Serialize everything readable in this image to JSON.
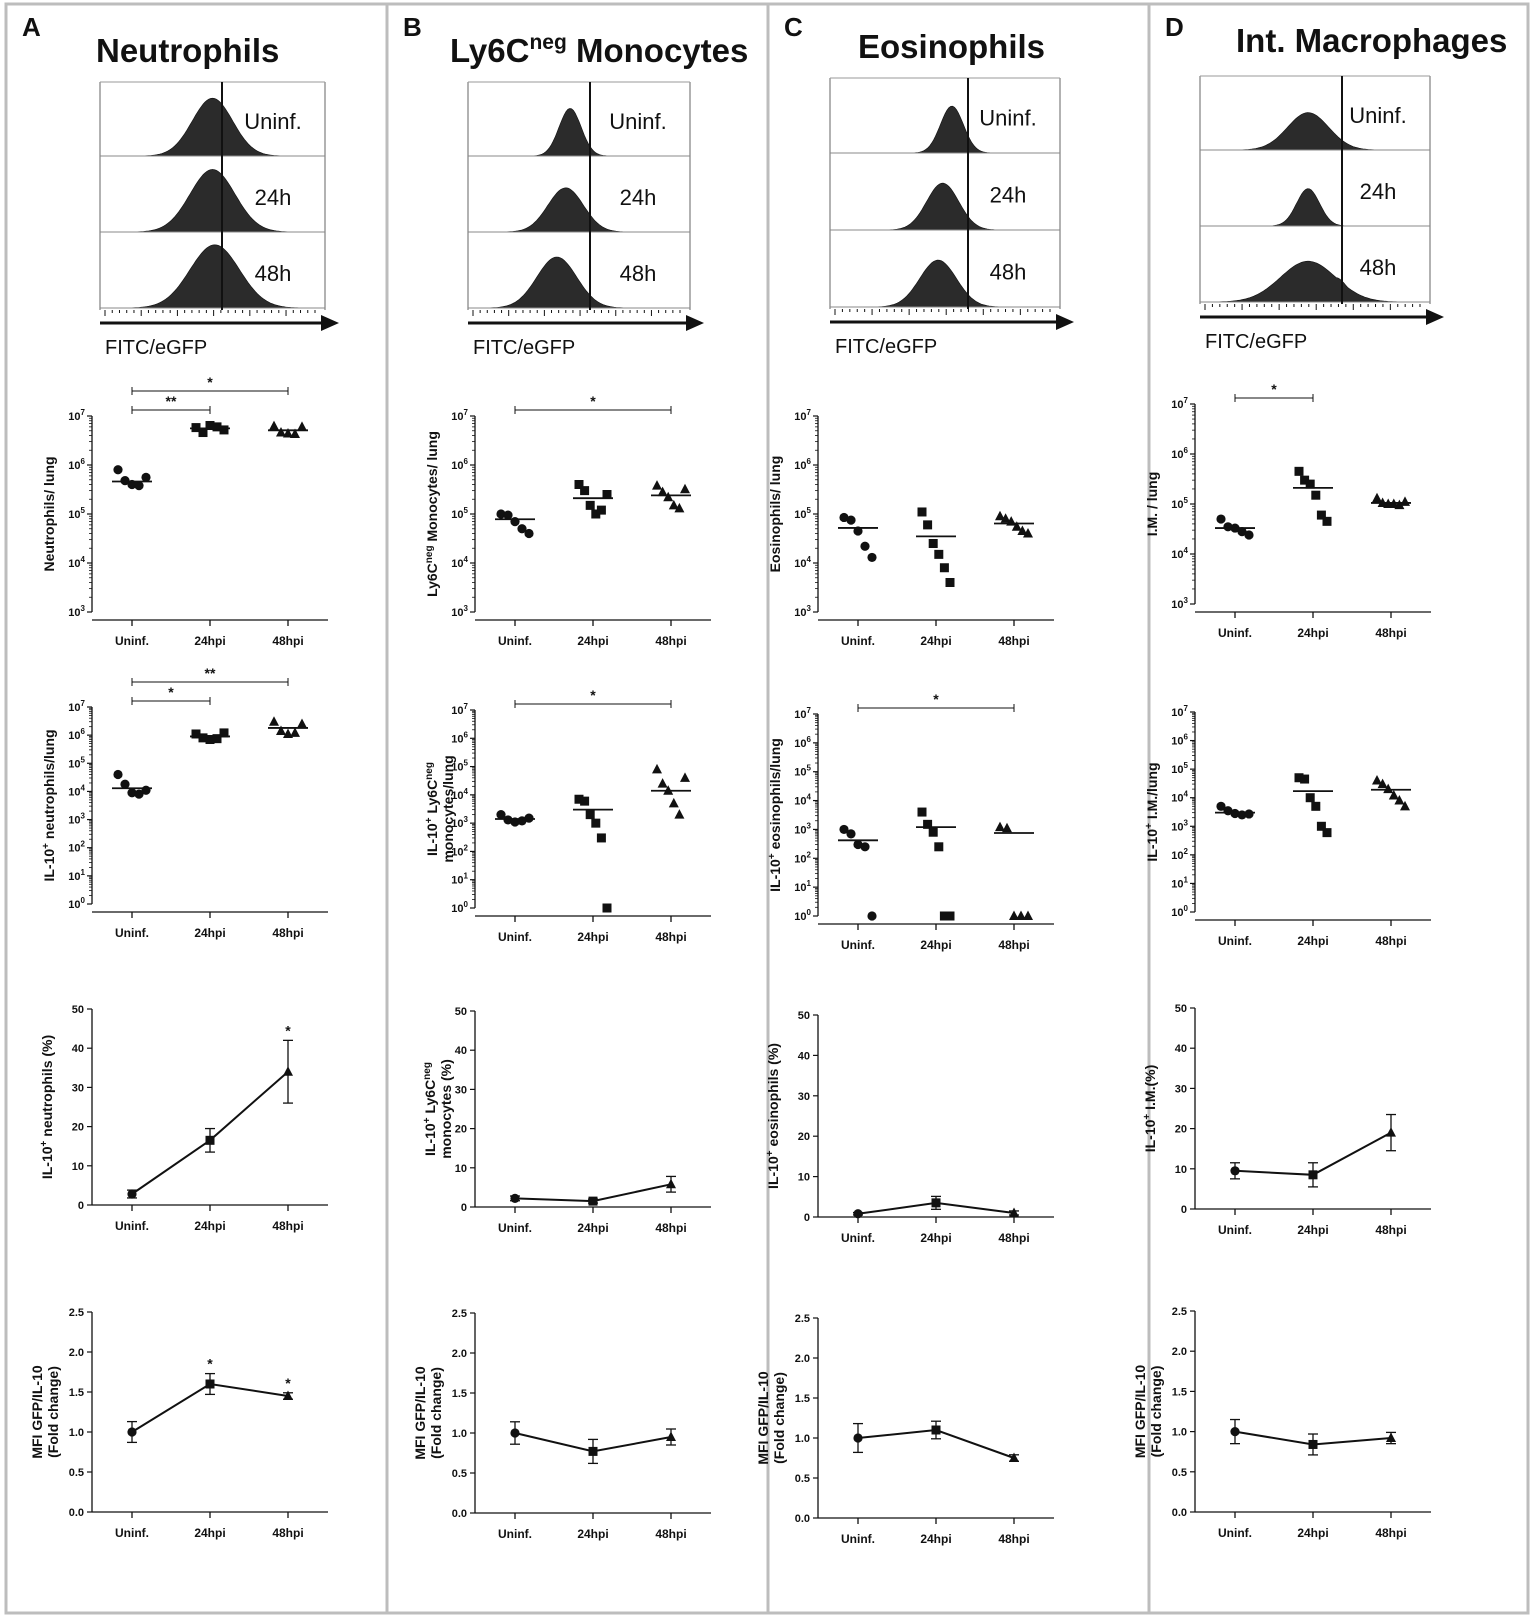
{
  "chart_data": {
    "type": "multi-panel",
    "x_categories": [
      "Uninf.",
      "24hpi",
      "48hpi"
    ],
    "hist_xlabel": "FITC/eGFP",
    "hist_labels": [
      "Uninf.",
      "24h",
      "48h"
    ],
    "panels": [
      {
        "letter": "A",
        "title": "Neutrophils",
        "title_sup": "",
        "title_rest": "",
        "counts": {
          "ylabel": "Neutrophils/ lung",
          "ylabel_sup": "",
          "ylabel_rest": "",
          "ylabel2": "",
          "ylim_exp": [
            3,
            7
          ],
          "groups": [
            {
              "points": [
                800000,
                480000,
                400000,
                380000,
                560000
              ],
              "mean": 460000
            },
            {
              "points": [
                5800000,
                4600000,
                6400000,
                6000000,
                5200000
              ],
              "mean": 5600000
            },
            {
              "points": [
                6200000,
                4600000,
                4400000,
                4300000,
                6000000
              ],
              "mean": 5100000
            }
          ],
          "sig": [
            {
              "from": 0,
              "to": 1,
              "label": "**"
            },
            {
              "from": 0,
              "to": 2,
              "label": "*"
            }
          ]
        },
        "il10": {
          "ylabel": "IL-10",
          "ylabel_sup": "+",
          "ylabel_rest": " neutrophils/lung",
          "ylabel2": "",
          "ylim_exp": [
            0,
            7
          ],
          "groups": [
            {
              "points": [
                40000,
                18000,
                9000,
                8000,
                11000
              ],
              "mean": 13000
            },
            {
              "points": [
                1100000,
                800000,
                700000,
                750000,
                1200000
              ],
              "mean": 900000
            },
            {
              "points": [
                3000000,
                1400000,
                1100000,
                1200000,
                2500000
              ],
              "mean": 1800000
            }
          ],
          "sig": [
            {
              "from": 0,
              "to": 1,
              "label": "*"
            },
            {
              "from": 0,
              "to": 2,
              "label": "**"
            }
          ]
        },
        "pct": {
          "ylabel": "IL-10",
          "ylabel_sup": "+",
          "ylabel_rest": " neutrophils (%)",
          "ylabel2": "",
          "ylim": [
            0,
            50
          ],
          "yticks": [
            0,
            10,
            20,
            30,
            40,
            50
          ],
          "values": [
            2.8,
            16.5,
            34
          ],
          "errors": [
            1.0,
            3.0,
            8.0
          ],
          "stars": [
            "",
            "",
            "*"
          ]
        },
        "mfi": {
          "ylabel": "MFI GFP/IL-10",
          "ylabel2": "(Fold change)",
          "ylim": [
            0,
            2.5
          ],
          "yticks": [
            0.0,
            0.5,
            1.0,
            1.5,
            2.0,
            2.5
          ],
          "values": [
            1.0,
            1.6,
            1.45
          ],
          "errors": [
            0.13,
            0.13,
            0.04
          ],
          "stars": [
            "",
            "*",
            "*"
          ]
        }
      },
      {
        "letter": "B",
        "title": "Ly6C",
        "title_sup": "neg",
        "title_rest": " Monocytes",
        "counts": {
          "ylabel": "Ly6C",
          "ylabel_sup": "neg",
          "ylabel_rest": " Monocytes/ lung",
          "ylabel2": "",
          "ylim_exp": [
            3,
            7
          ],
          "groups": [
            {
              "points": [
                100000,
                95000,
                70000,
                50000,
                40000
              ],
              "mean": 78000
            },
            {
              "points": [
                400000,
                300000,
                150000,
                100000,
                120000,
                250000
              ],
              "mean": 210000
            },
            {
              "points": [
                380000,
                280000,
                220000,
                150000,
                130000,
                320000
              ],
              "mean": 240000
            }
          ],
          "sig": [
            {
              "from": 0,
              "to": 2,
              "label": "*"
            }
          ]
        },
        "il10": {
          "ylabel": "IL-10",
          "ylabel_sup": "+",
          "ylabel_rest": " Ly6C",
          "ylabel_sup2": "neg",
          "ylabel2": "monocytes/lung",
          "ylim_exp": [
            0,
            7
          ],
          "groups": [
            {
              "points": [
                2000,
                1300,
                1100,
                1200,
                1500
              ],
              "mean": 1400
            },
            {
              "points": [
                7000,
                6000,
                2000,
                1000,
                300,
                1
              ],
              "mean": 3000
            },
            {
              "points": [
                80000,
                25000,
                14000,
                5000,
                2000,
                40000
              ],
              "mean": 14000
            }
          ],
          "sig": [
            {
              "from": 0,
              "to": 2,
              "label": "*"
            }
          ]
        },
        "pct": {
          "ylabel": "IL-10",
          "ylabel_sup": "+",
          "ylabel_rest": " Ly6C",
          "ylabel_sup2": "neg",
          "ylabel2": "monocytes (%)",
          "ylim": [
            0,
            50
          ],
          "yticks": [
            0,
            10,
            20,
            30,
            40,
            50
          ],
          "values": [
            2.2,
            1.5,
            5.8
          ],
          "errors": [
            0.6,
            0.5,
            2.0
          ],
          "stars": [
            "",
            "",
            ""
          ]
        },
        "mfi": {
          "ylabel": "MFI GFP/IL-10",
          "ylabel2": "(Fold change)",
          "ylim": [
            0,
            2.5
          ],
          "yticks": [
            0.0,
            0.5,
            1.0,
            1.5,
            2.0,
            2.5
          ],
          "values": [
            1.0,
            0.77,
            0.95
          ],
          "errors": [
            0.14,
            0.15,
            0.1
          ],
          "stars": [
            "",
            "",
            ""
          ]
        }
      },
      {
        "letter": "C",
        "title": "Eosinophils",
        "title_sup": "",
        "title_rest": "",
        "counts": {
          "ylabel": "Eosinophils/ lung",
          "ylabel_sup": "",
          "ylabel_rest": "",
          "ylabel2": "",
          "ylim_exp": [
            3,
            7
          ],
          "groups": [
            {
              "points": [
                85000,
                75000,
                45000,
                22000,
                13000
              ],
              "mean": 52000
            },
            {
              "points": [
                110000,
                60000,
                25000,
                15000,
                8000,
                4000
              ],
              "mean": 35000
            },
            {
              "points": [
                90000,
                80000,
                70000,
                55000,
                45000,
                40000
              ],
              "mean": 64000
            }
          ],
          "sig": []
        },
        "il10": {
          "ylabel": "IL-10",
          "ylabel_sup": "+",
          "ylabel_rest": " eosinophils/lung",
          "ylabel2": "",
          "ylim_exp": [
            0,
            7
          ],
          "groups": [
            {
              "points": [
                1000,
                700,
                300,
                250,
                1
              ],
              "mean": 420
            },
            {
              "points": [
                4000,
                1500,
                800,
                250,
                1,
                1
              ],
              "mean": 1200
            },
            {
              "points": [
                1200,
                1100,
                1,
                1,
                1
              ],
              "mean": 750
            }
          ],
          "sig": [
            {
              "from": 0,
              "to": 2,
              "label": "*"
            }
          ]
        },
        "pct": {
          "ylabel": "IL-10",
          "ylabel_sup": "+",
          "ylabel_rest": " eosinophils (%)",
          "ylabel2": "",
          "ylim": [
            0,
            50
          ],
          "yticks": [
            0,
            10,
            20,
            30,
            40,
            50
          ],
          "values": [
            0.8,
            3.5,
            1.0
          ],
          "errors": [
            0.3,
            1.6,
            0.5
          ],
          "stars": [
            "",
            "",
            ""
          ]
        },
        "mfi": {
          "ylabel": "MFI GFP/IL-10",
          "ylabel2": "(Fold change)",
          "ylim": [
            0,
            2.5
          ],
          "yticks": [
            0.0,
            0.5,
            1.0,
            1.5,
            2.0,
            2.5
          ],
          "values": [
            1.0,
            1.1,
            0.75
          ],
          "errors": [
            0.18,
            0.11,
            0.04
          ],
          "stars": [
            "",
            "",
            ""
          ]
        }
      },
      {
        "letter": "D",
        "title": "Int. Macrophages",
        "title_sup": "",
        "title_rest": "",
        "counts": {
          "ylabel": "I.M. / lung",
          "ylabel_sup": "",
          "ylabel_rest": "",
          "ylabel2": "",
          "ylim_exp": [
            3,
            7
          ],
          "groups": [
            {
              "points": [
                50000,
                35000,
                33000,
                28000,
                24000
              ],
              "mean": 33000
            },
            {
              "points": [
                450000,
                300000,
                250000,
                150000,
                60000,
                45000
              ],
              "mean": 210000
            },
            {
              "points": [
                130000,
                105000,
                100000,
                100000,
                95000,
                110000
              ],
              "mean": 105000
            }
          ],
          "sig": [
            {
              "from": 0,
              "to": 1,
              "label": "*"
            }
          ]
        },
        "il10": {
          "ylabel": "IL-10",
          "ylabel_sup": "+",
          "ylabel_rest": " I.M./lung",
          "ylabel2": "",
          "ylim_exp": [
            0,
            7
          ],
          "groups": [
            {
              "points": [
                5000,
                3500,
                2800,
                2500,
                2700
              ],
              "mean": 3000
            },
            {
              "points": [
                50000,
                45000,
                10000,
                5000,
                1000,
                600
              ],
              "mean": 17000
            },
            {
              "points": [
                40000,
                30000,
                20000,
                12000,
                8000,
                5000
              ],
              "mean": 19000
            }
          ],
          "sig": []
        },
        "pct": {
          "ylabel": "IL-10",
          "ylabel_sup": "+",
          "ylabel_rest": " I.M.(%)",
          "ylabel2": "",
          "ylim": [
            0,
            50
          ],
          "yticks": [
            0,
            10,
            20,
            30,
            40,
            50
          ],
          "values": [
            9.5,
            8.5,
            19
          ],
          "errors": [
            2.0,
            3.0,
            4.5
          ],
          "stars": [
            "",
            "",
            ""
          ]
        },
        "mfi": {
          "ylabel": "MFI GFP/IL-10",
          "ylabel2": "(Fold change)",
          "ylim": [
            0,
            2.5
          ],
          "yticks": [
            0.0,
            0.5,
            1.0,
            1.5,
            2.0,
            2.5
          ],
          "values": [
            1.0,
            0.84,
            0.92
          ],
          "errors": [
            0.15,
            0.13,
            0.07
          ],
          "stars": [
            "",
            "",
            ""
          ]
        }
      }
    ]
  }
}
